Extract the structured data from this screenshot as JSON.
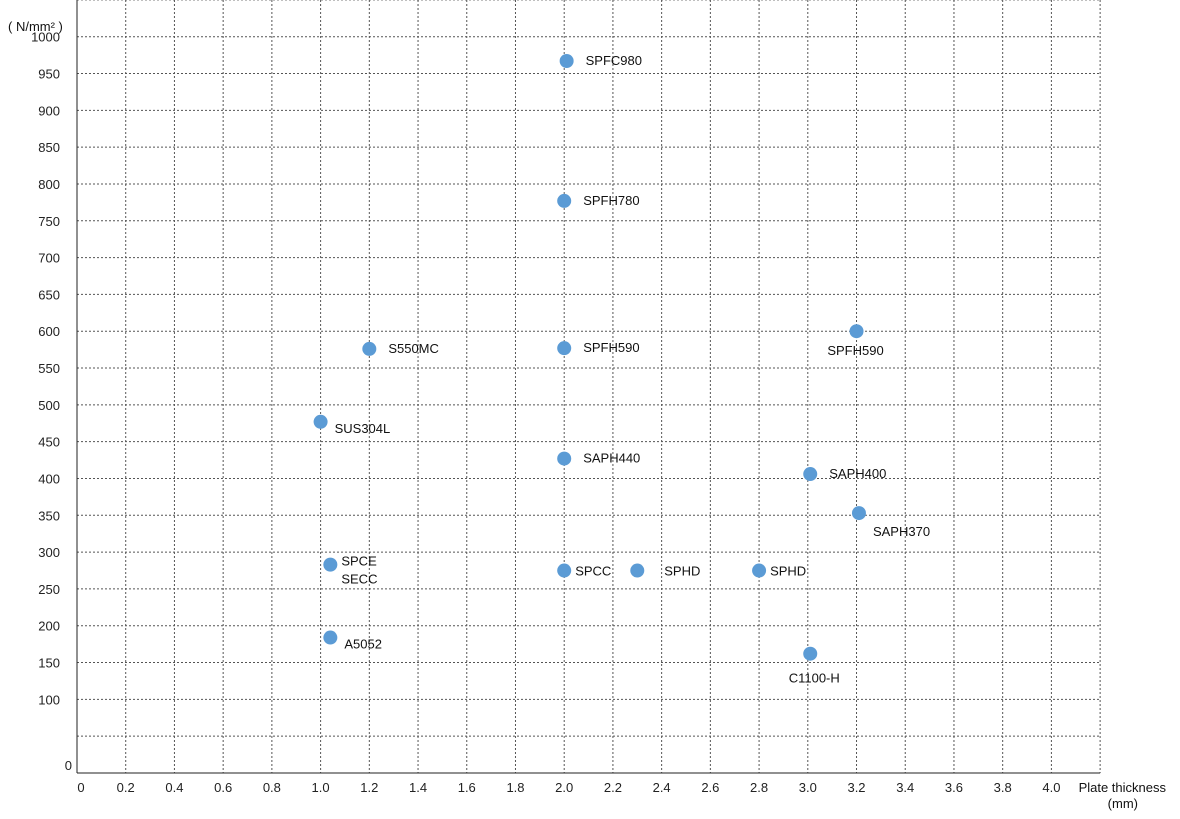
{
  "chart_data": {
    "type": "scatter",
    "title": "",
    "xlabel_line1": "Plate thickness",
    "xlabel_line2": "(mm)",
    "ylabel": "( N/mm² )",
    "xlim": [
      0,
      4.2
    ],
    "ylim": [
      0,
      1050
    ],
    "grid": true,
    "legend": "none",
    "marker_color": "#5b9bd5",
    "x_ticks": [
      {
        "v": 0,
        "t": "0"
      },
      {
        "v": 0.2,
        "t": "0.2"
      },
      {
        "v": 0.4,
        "t": "0.4"
      },
      {
        "v": 0.6,
        "t": "0.6"
      },
      {
        "v": 0.8,
        "t": "0.8"
      },
      {
        "v": 1.0,
        "t": "1.0"
      },
      {
        "v": 1.2,
        "t": "1.2"
      },
      {
        "v": 1.4,
        "t": "1.4"
      },
      {
        "v": 1.6,
        "t": "1.6"
      },
      {
        "v": 1.8,
        "t": "1.8"
      },
      {
        "v": 2.0,
        "t": "2.0"
      },
      {
        "v": 2.2,
        "t": "2.2"
      },
      {
        "v": 2.4,
        "t": "2.4"
      },
      {
        "v": 2.6,
        "t": "2.6"
      },
      {
        "v": 2.8,
        "t": "2.8"
      },
      {
        "v": 3.0,
        "t": "3.0"
      },
      {
        "v": 3.2,
        "t": "3.2"
      },
      {
        "v": 3.4,
        "t": "3.4"
      },
      {
        "v": 3.6,
        "t": "3.6"
      },
      {
        "v": 3.8,
        "t": "3.8"
      },
      {
        "v": 4.0,
        "t": "4.0"
      }
    ],
    "y_ticks": [
      {
        "v": 0,
        "t": "0"
      },
      {
        "v": 100,
        "t": "100"
      },
      {
        "v": 150,
        "t": "150"
      },
      {
        "v": 200,
        "t": "200"
      },
      {
        "v": 250,
        "t": "250"
      },
      {
        "v": 300,
        "t": "300"
      },
      {
        "v": 350,
        "t": "350"
      },
      {
        "v": 400,
        "t": "400"
      },
      {
        "v": 450,
        "t": "450"
      },
      {
        "v": 500,
        "t": "500"
      },
      {
        "v": 550,
        "t": "550"
      },
      {
        "v": 600,
        "t": "600"
      },
      {
        "v": 650,
        "t": "650"
      },
      {
        "v": 700,
        "t": "700"
      },
      {
        "v": 750,
        "t": "750"
      },
      {
        "v": 800,
        "t": "800"
      },
      {
        "v": 850,
        "t": "850"
      },
      {
        "v": 900,
        "t": "900"
      },
      {
        "v": 950,
        "t": "950"
      },
      {
        "v": 1000,
        "t": "1000"
      }
    ],
    "x_grid": [
      0.2,
      0.4,
      0.6,
      0.8,
      1.0,
      1.2,
      1.4,
      1.6,
      1.8,
      2.0,
      2.2,
      2.4,
      2.6,
      2.8,
      3.0,
      3.2,
      3.4,
      3.6,
      3.8,
      4.0,
      4.2
    ],
    "y_grid": [
      50,
      100,
      150,
      200,
      250,
      300,
      350,
      400,
      450,
      500,
      550,
      600,
      650,
      700,
      750,
      800,
      850,
      900,
      950,
      1000,
      1050
    ],
    "points": [
      {
        "x": 2.01,
        "y": 967,
        "label": "SPFC980",
        "pos": "right"
      },
      {
        "x": 2.0,
        "y": 777,
        "label": "SPFH780",
        "pos": "right"
      },
      {
        "x": 1.2,
        "y": 576,
        "label": "S550MC",
        "pos": "right"
      },
      {
        "x": 2.0,
        "y": 577,
        "label": "SPFH590",
        "pos": "right"
      },
      {
        "x": 3.2,
        "y": 600,
        "label": "SPFH590",
        "pos": "below"
      },
      {
        "x": 1.0,
        "y": 477,
        "label": "SUS304L",
        "pos": "below-right"
      },
      {
        "x": 2.0,
        "y": 427,
        "label": "SAPH440",
        "pos": "right"
      },
      {
        "x": 3.01,
        "y": 406,
        "label": "SAPH400",
        "pos": "right"
      },
      {
        "x": 3.21,
        "y": 353,
        "label": "SAPH370",
        "pos": "below-right"
      },
      {
        "x": 1.04,
        "y": 283,
        "label": "SPCE",
        "label2": "SECC",
        "pos": "right-two"
      },
      {
        "x": 2.0,
        "y": 275,
        "label": "SPCC",
        "pos": "right-near"
      },
      {
        "x": 2.3,
        "y": 275,
        "label": "SPHD",
        "pos": "right-far"
      },
      {
        "x": 2.8,
        "y": 275,
        "label": "SPHD",
        "pos": "right-near"
      },
      {
        "x": 1.04,
        "y": 184,
        "label": "A5052",
        "pos": "below-right"
      },
      {
        "x": 3.01,
        "y": 162,
        "label": "C1100-H",
        "pos": "below"
      }
    ]
  }
}
